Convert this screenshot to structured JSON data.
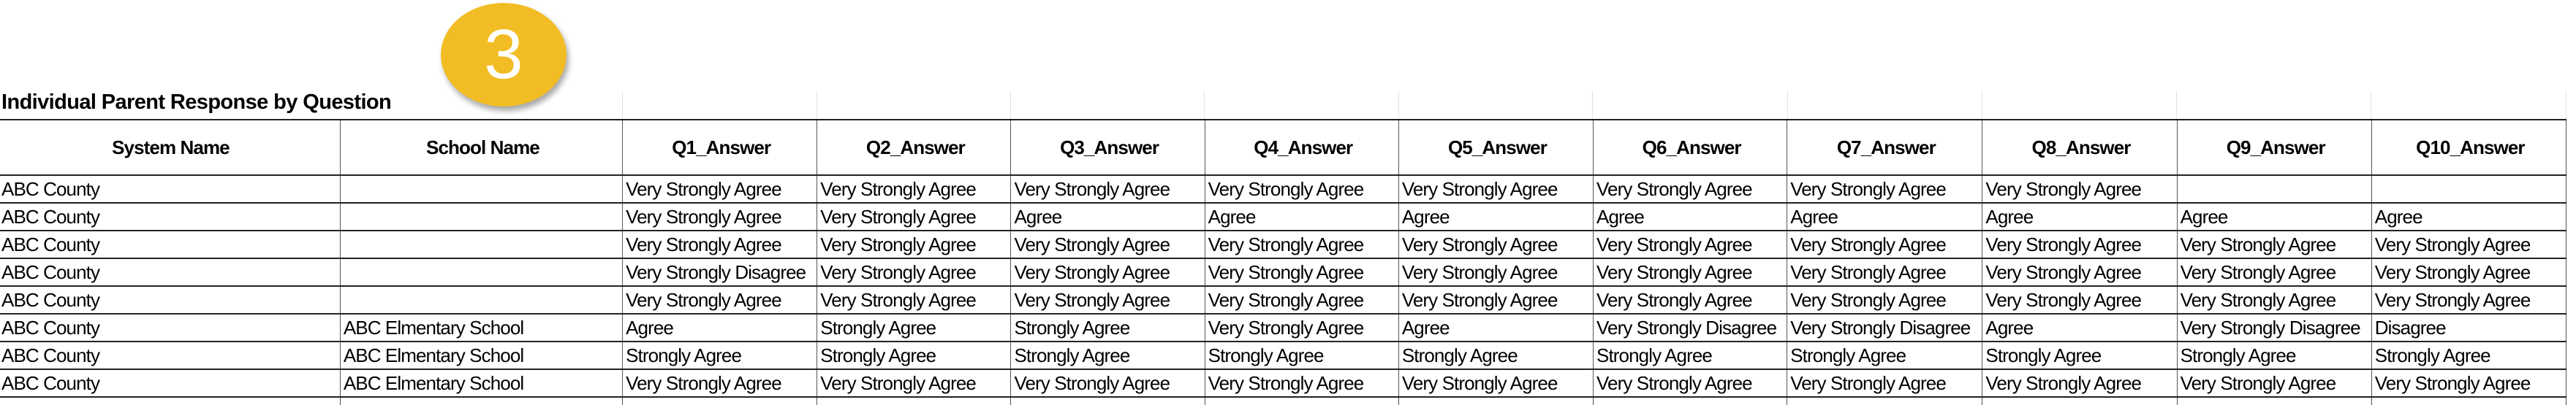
{
  "badge": {
    "label": "3",
    "color": "#F2BD24"
  },
  "title": "Individual Parent Response by Question",
  "table": {
    "columns": [
      "System Name",
      "School Name",
      "Q1_Answer",
      "Q2_Answer",
      "Q3_Answer",
      "Q4_Answer",
      "Q5_Answer",
      "Q6_Answer",
      "Q7_Answer",
      "Q8_Answer",
      "Q9_Answer",
      "Q10_Answer"
    ],
    "rows": [
      [
        "ABC County",
        "",
        "Very Strongly Agree",
        "Very Strongly Agree",
        "Very Strongly Agree",
        "Very Strongly Agree",
        "Very Strongly Agree",
        "Very Strongly Agree",
        "Very Strongly Agree",
        "Very Strongly Agree",
        "",
        ""
      ],
      [
        "ABC County",
        "",
        "Very Strongly Agree",
        "Very Strongly Agree",
        "Agree",
        "Agree",
        "Agree",
        "Agree",
        "Agree",
        "Agree",
        "Agree",
        "Agree"
      ],
      [
        "ABC County",
        "",
        "Very Strongly Agree",
        "Very Strongly Agree",
        "Very Strongly Agree",
        "Very Strongly Agree",
        "Very Strongly Agree",
        "Very Strongly Agree",
        "Very Strongly Agree",
        "Very Strongly Agree",
        "Very Strongly Agree",
        "Very Strongly Agree"
      ],
      [
        "ABC County",
        "",
        "Very Strongly Disagree",
        "Very Strongly Agree",
        "Very Strongly Agree",
        "Very Strongly Agree",
        "Very Strongly Agree",
        "Very Strongly Agree",
        "Very Strongly Agree",
        "Very Strongly Agree",
        "Very Strongly Agree",
        "Very Strongly Agree"
      ],
      [
        "ABC County",
        "",
        "Very Strongly Agree",
        "Very Strongly Agree",
        "Very Strongly Agree",
        "Very Strongly Agree",
        "Very Strongly Agree",
        "Very Strongly Agree",
        "Very Strongly Agree",
        "Very Strongly Agree",
        "Very Strongly Agree",
        "Very Strongly Agree"
      ],
      [
        "ABC County",
        "ABC Elmentary School",
        "Agree",
        "Strongly Agree",
        "Strongly Agree",
        "Very Strongly Agree",
        "Agree",
        "Very Strongly Disagree",
        "Very Strongly Disagree",
        "Agree",
        "Very Strongly Disagree",
        "Disagree"
      ],
      [
        "ABC County",
        "ABC Elmentary School",
        "Strongly Agree",
        "Strongly Agree",
        "Strongly Agree",
        "Strongly Agree",
        "Strongly Agree",
        "Strongly Agree",
        "Strongly Agree",
        "Strongly Agree",
        "Strongly Agree",
        "Strongly Agree"
      ],
      [
        "ABC County",
        "ABC Elmentary School",
        "Very Strongly Agree",
        "Very Strongly Agree",
        "Very Strongly Agree",
        "Very Strongly Agree",
        "Very Strongly Agree",
        "Very Strongly Agree",
        "Very Strongly Agree",
        "Very Strongly Agree",
        "Very Strongly Agree",
        "Very Strongly Agree"
      ]
    ]
  }
}
